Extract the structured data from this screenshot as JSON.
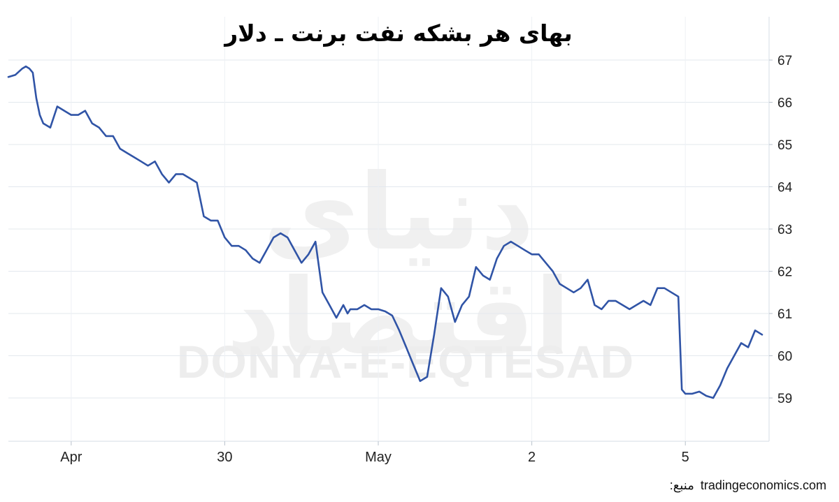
{
  "chart_data": {
    "type": "line",
    "title": "بهای هر بشکه نفت برنت ـ دلار",
    "xlabel": "",
    "ylabel": "",
    "ylim": [
      58,
      67.5
    ],
    "grid": true,
    "legend": "none",
    "y_ticks": [
      59,
      60,
      61,
      62,
      63,
      64,
      65,
      66,
      67
    ],
    "x_tick_labels": [
      {
        "label": "Apr",
        "x": 9
      },
      {
        "label": "30",
        "x": 31
      },
      {
        "label": "May",
        "x": 53
      },
      {
        "label": "2",
        "x": 75
      },
      {
        "label": "5",
        "x": 97
      }
    ],
    "xlim": [
      0,
      109
    ],
    "line_color": "#3054a6",
    "series": [
      {
        "x": [
          0,
          1,
          2,
          2.5,
          3,
          3.5,
          4,
          4.5,
          5,
          6,
          7,
          8,
          9,
          10,
          11,
          12,
          13,
          14,
          15,
          16,
          17,
          18,
          19,
          20,
          21,
          22,
          23,
          24,
          25,
          26,
          27,
          28,
          29,
          30,
          31,
          32,
          33,
          34,
          35,
          36,
          37,
          38,
          39,
          40,
          41,
          42,
          43,
          44,
          45,
          46,
          47,
          48,
          48.3,
          48.6,
          49,
          50,
          51,
          52,
          53,
          54,
          55,
          56,
          57,
          58,
          59,
          60,
          61,
          62,
          63,
          64,
          65,
          66,
          67,
          68,
          69,
          70,
          71,
          72,
          73,
          74,
          75,
          76,
          77,
          78,
          79,
          80,
          81,
          82,
          83,
          84,
          85,
          86,
          87,
          88,
          89,
          90,
          91,
          92,
          93,
          94,
          95,
          96,
          96.5,
          97,
          98,
          99,
          100,
          101,
          102,
          103,
          104,
          105,
          106,
          107,
          108
        ],
        "values": [
          66.6,
          66.65,
          66.8,
          66.85,
          66.8,
          66.7,
          66.1,
          65.7,
          65.5,
          65.4,
          65.9,
          65.8,
          65.7,
          65.7,
          65.8,
          65.5,
          65.4,
          65.2,
          65.2,
          64.9,
          64.8,
          64.7,
          64.6,
          64.5,
          64.6,
          64.3,
          64.1,
          64.3,
          64.3,
          64.2,
          64.1,
          63.3,
          63.2,
          63.2,
          62.8,
          62.6,
          62.6,
          62.5,
          62.3,
          62.2,
          62.5,
          62.8,
          62.9,
          62.8,
          62.5,
          62.2,
          62.4,
          62.7,
          61.5,
          61.2,
          60.9,
          61.2,
          61.1,
          61.0,
          61.1,
          61.1,
          61.2,
          61.1,
          61.1,
          61.05,
          60.95,
          60.6,
          60.2,
          59.8,
          59.4,
          59.5,
          60.5,
          61.6,
          61.4,
          60.8,
          61.2,
          61.4,
          62.1,
          61.9,
          61.8,
          62.3,
          62.6,
          62.7,
          62.6,
          62.5,
          62.4,
          62.4,
          62.2,
          62.0,
          61.7,
          61.6,
          61.5,
          61.6,
          61.8,
          61.2,
          61.1,
          61.3,
          61.3,
          61.2,
          61.1,
          61.2,
          61.3,
          61.2,
          61.6,
          61.6,
          61.5,
          61.4,
          59.2,
          59.1,
          59.1,
          59.15,
          59.05,
          59.0,
          59.3,
          59.7,
          60.0,
          60.3,
          60.2,
          60.6,
          60.5
        ]
      }
    ]
  },
  "watermark": {
    "latin": "DONYA-E-EQTESAD",
    "arabic": "دنیای اقتصاد"
  },
  "source": {
    "label": "منبع:",
    "site": "tradingeconomics.com"
  }
}
